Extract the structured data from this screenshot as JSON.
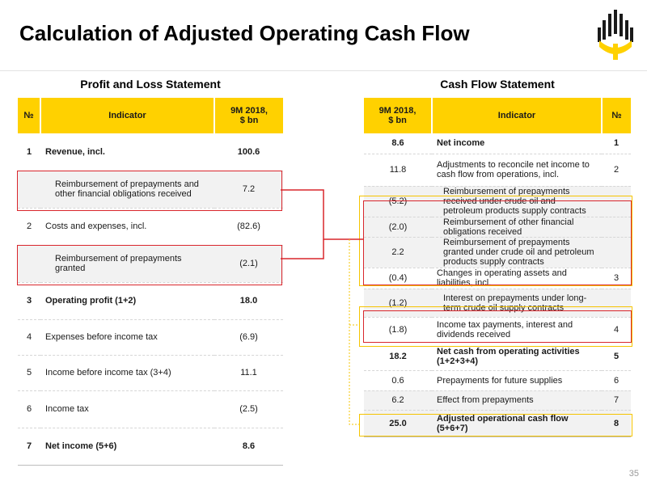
{
  "slide": {
    "title": "Calculation of Adjusted Operating Cash Flow",
    "page_number": "35",
    "logo_icon": "company-sun-logo"
  },
  "pl": {
    "title": "Profit and Loss Statement",
    "headers": {
      "no": "№",
      "indicator": "Indicator",
      "value": "9M 2018,\n$ bn"
    },
    "rows": [
      {
        "no": "1",
        "indicator": "Revenue, incl.",
        "value": "100.6",
        "bold": true
      },
      {
        "no": "",
        "indicator": "Reimbursement of prepayments and other financial obligations received",
        "value": "7.2",
        "sub": true
      },
      {
        "no": "2",
        "indicator": "Costs and expenses, incl.",
        "value": "(82.6)"
      },
      {
        "no": "",
        "indicator": "Reimbursement of prepayments granted",
        "value": "(2.1)",
        "sub": true
      },
      {
        "no": "3",
        "indicator": "Operating profit (1+2)",
        "value": "18.0",
        "bold": true
      },
      {
        "no": "4",
        "indicator": "Expenses before income tax",
        "value": "(6.9)"
      },
      {
        "no": "5",
        "indicator": "Income before income tax (3+4)",
        "value": "11.1"
      },
      {
        "no": "6",
        "indicator": "Income tax",
        "value": "(2.5)"
      },
      {
        "no": "7",
        "indicator": "Net income (5+6)",
        "value": "8.6",
        "bold": true
      }
    ]
  },
  "cf": {
    "title": "Cash Flow Statement",
    "headers": {
      "value": "9M 2018,\n$ bn",
      "indicator": "Indicator",
      "no": "№"
    },
    "rows": [
      {
        "value": "8.6",
        "indicator": "Net income",
        "no": "1",
        "bold": true
      },
      {
        "value": "11.8",
        "indicator": "Adjustments to reconcile net income to cash flow from operations, incl.",
        "no": "2"
      },
      {
        "value": "(5.2)",
        "indicator": "Reimbursement of prepayments received under crude oil and petroleum products supply contracts",
        "no": "",
        "sub": true
      },
      {
        "value": "(2.0)",
        "indicator": "Reimbursement of other financial obligations received",
        "no": "",
        "sub": true
      },
      {
        "value": "2.2",
        "indicator": "Reimbursement of prepayments granted under crude oil and petroleum products supply contracts",
        "no": "",
        "sub": true
      },
      {
        "value": "(0.4)",
        "indicator": "Changes in operating assets and liabilities, incl.",
        "no": "3"
      },
      {
        "value": "(1.2)",
        "indicator": "Interest on prepayments under long-term crude oil supply contracts",
        "no": "",
        "sub": true
      },
      {
        "value": "(1.8)",
        "indicator": "Income tax payments, interest and dividends received",
        "no": "4"
      },
      {
        "value": "18.2",
        "indicator": "Net cash from operating activities (1+2+3+4)",
        "no": "5",
        "bold": true
      },
      {
        "value": "0.6",
        "indicator": "Prepayments for future supplies",
        "no": "6"
      },
      {
        "value": "6.2",
        "indicator": "Effect from prepayments",
        "no": "7"
      },
      {
        "value": "25.0",
        "indicator": "Adjusted operational cash flow (5+6+7)",
        "no": "8",
        "bold": true
      }
    ]
  },
  "colors": {
    "accent_yellow": "#ffd100",
    "highlight_red": "#d9262c",
    "row_shade": "#f2f2f2"
  }
}
